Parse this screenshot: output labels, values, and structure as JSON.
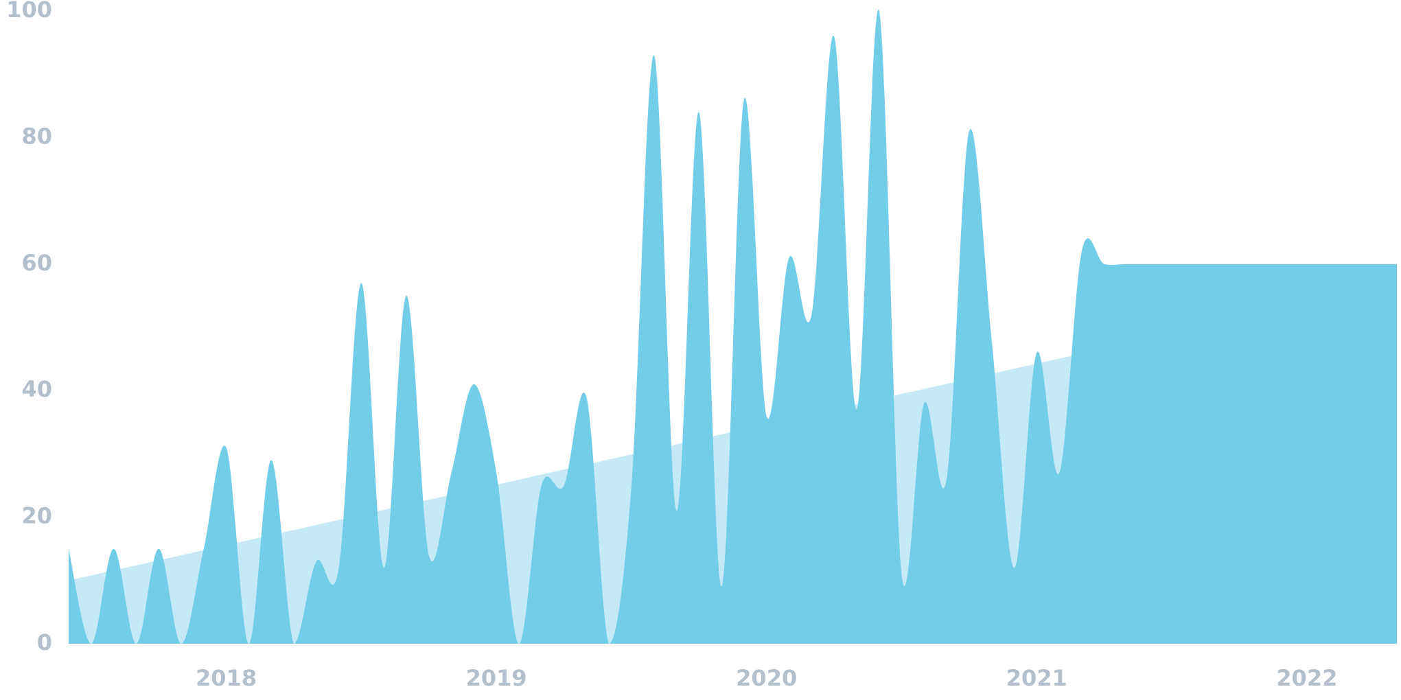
{
  "colors": {
    "area": "#72cde9",
    "trend": "#c6e9f7",
    "tick_text": "#b3bfcb",
    "background": "#ffffff"
  },
  "chart_data": {
    "type": "area",
    "title": "",
    "xlabel": "",
    "ylabel": "",
    "ylim": [
      0,
      100
    ],
    "yticks": [
      0,
      20,
      40,
      60,
      80,
      100
    ],
    "xlim": [
      "2017-06",
      "2022-05"
    ],
    "xticks": [
      {
        "label": "2018",
        "date": "2018-01"
      },
      {
        "label": "2019",
        "date": "2019-01"
      },
      {
        "label": "2020",
        "date": "2020-01"
      },
      {
        "label": "2021",
        "date": "2021-01"
      },
      {
        "label": "2022",
        "date": "2022-01"
      }
    ],
    "grid": false,
    "legend": "none",
    "series": [
      {
        "type": "area",
        "x": [
          "2017-06",
          "2017-07",
          "2017-08",
          "2017-09",
          "2017-10",
          "2017-11",
          "2017-12",
          "2018-01",
          "2018-02",
          "2018-03",
          "2018-04",
          "2018-05",
          "2018-06",
          "2018-07",
          "2018-08",
          "2018-09",
          "2018-10",
          "2018-11",
          "2018-12",
          "2019-01",
          "2019-02",
          "2019-03",
          "2019-04",
          "2019-05",
          "2019-06",
          "2019-07",
          "2019-08",
          "2019-09",
          "2019-10",
          "2019-11",
          "2019-12",
          "2020-01",
          "2020-02",
          "2020-03",
          "2020-04",
          "2020-05",
          "2020-06",
          "2020-07",
          "2020-08",
          "2020-09",
          "2020-10",
          "2020-11",
          "2020-12",
          "2021-01",
          "2021-02",
          "2021-03",
          "2021-04",
          "2021-05",
          "2021-06",
          "2021-07",
          "2021-08",
          "2021-09",
          "2021-10",
          "2021-11",
          "2021-12",
          "2022-01",
          "2022-02",
          "2022-03",
          "2022-04",
          "2022-05"
        ],
        "values": [
          15,
          0,
          15,
          0,
          15,
          0,
          15,
          31,
          0,
          29,
          0,
          13,
          12,
          57,
          12,
          55,
          14,
          27,
          41,
          27,
          0,
          25,
          25,
          39,
          0,
          25,
          93,
          21,
          84,
          9,
          86,
          36,
          61,
          52,
          96,
          37,
          100,
          11,
          38,
          26,
          81,
          48,
          12,
          46,
          27,
          62,
          60,
          60,
          60,
          60,
          60,
          60,
          60,
          60,
          60,
          60,
          60,
          60,
          60,
          60
        ]
      },
      {
        "type": "trend",
        "x": [
          "2017-06",
          "2022-05"
        ],
        "values": [
          10,
          57
        ]
      }
    ]
  }
}
